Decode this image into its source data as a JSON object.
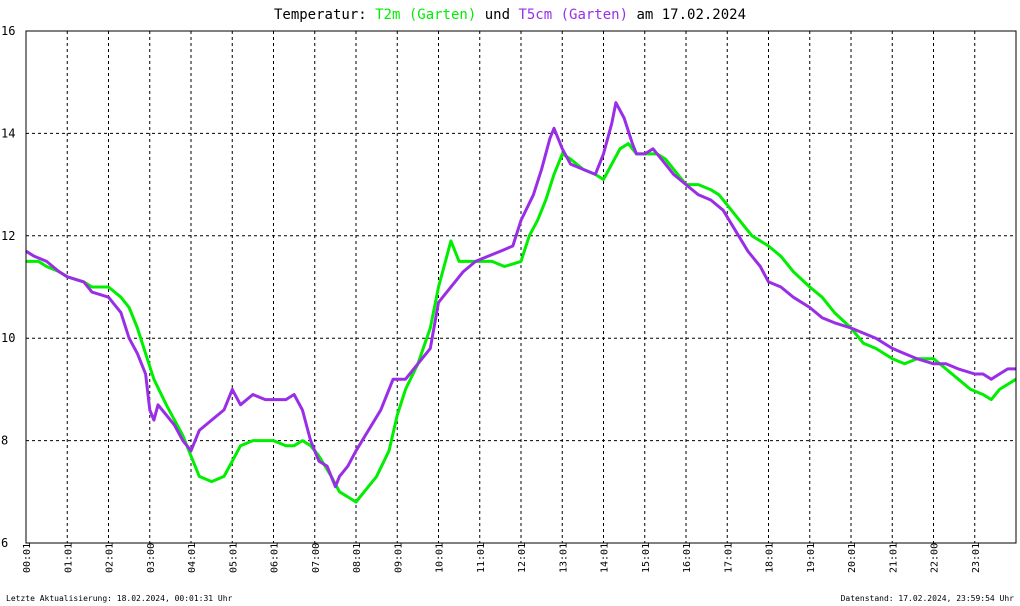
{
  "chart_data": {
    "type": "line",
    "title_parts": [
      {
        "text": "Temperatur: ",
        "color": "#000000"
      },
      {
        "text": "T2m (Garten)",
        "color": "#00ee00"
      },
      {
        "text": " und ",
        "color": "#000000"
      },
      {
        "text": "T5cm (Garten)",
        "color": "#9a2ee6"
      },
      {
        "text": " am 17.02.2024",
        "color": "#000000"
      }
    ],
    "ylim": [
      6,
      16
    ],
    "yticks": [
      6,
      8,
      10,
      12,
      14,
      16
    ],
    "x_range_hours": [
      0,
      24
    ],
    "xticks": [
      "00:01",
      "01:01",
      "02:01",
      "03:00",
      "04:01",
      "05:01",
      "06:01",
      "07:00",
      "08:01",
      "09:01",
      "10:01",
      "11:01",
      "12:01",
      "13:01",
      "14:01",
      "15:01",
      "16:01",
      "17:01",
      "18:01",
      "19:01",
      "20:01",
      "21:01",
      "22:00",
      "23:01"
    ],
    "grid": true,
    "series": [
      {
        "name": "T2m (Garten)",
        "color": "#00ee00",
        "points": [
          [
            0,
            11.5
          ],
          [
            0.3,
            11.5
          ],
          [
            0.5,
            11.4
          ],
          [
            0.8,
            11.3
          ],
          [
            1.0,
            11.2
          ],
          [
            1.4,
            11.1
          ],
          [
            1.6,
            11.0
          ],
          [
            2.0,
            11.0
          ],
          [
            2.3,
            10.8
          ],
          [
            2.5,
            10.6
          ],
          [
            2.7,
            10.2
          ],
          [
            2.9,
            9.7
          ],
          [
            3.1,
            9.2
          ],
          [
            3.4,
            8.7
          ],
          [
            3.6,
            8.4
          ],
          [
            3.8,
            8.1
          ],
          [
            4.0,
            7.7
          ],
          [
            4.2,
            7.3
          ],
          [
            4.5,
            7.2
          ],
          [
            4.8,
            7.3
          ],
          [
            5.0,
            7.6
          ],
          [
            5.2,
            7.9
          ],
          [
            5.5,
            8.0
          ],
          [
            5.8,
            8.0
          ],
          [
            6.0,
            8.0
          ],
          [
            6.3,
            7.9
          ],
          [
            6.5,
            7.9
          ],
          [
            6.7,
            8.0
          ],
          [
            6.9,
            7.9
          ],
          [
            7.1,
            7.7
          ],
          [
            7.4,
            7.3
          ],
          [
            7.6,
            7.0
          ],
          [
            7.8,
            6.9
          ],
          [
            8.0,
            6.8
          ],
          [
            8.2,
            7.0
          ],
          [
            8.5,
            7.3
          ],
          [
            8.8,
            7.8
          ],
          [
            9.0,
            8.5
          ],
          [
            9.2,
            9.0
          ],
          [
            9.5,
            9.5
          ],
          [
            9.8,
            10.2
          ],
          [
            10.0,
            11.0
          ],
          [
            10.2,
            11.6
          ],
          [
            10.3,
            11.9
          ],
          [
            10.5,
            11.5
          ],
          [
            10.8,
            11.5
          ],
          [
            11.0,
            11.5
          ],
          [
            11.3,
            11.5
          ],
          [
            11.6,
            11.4
          ],
          [
            12.0,
            11.5
          ],
          [
            12.2,
            12.0
          ],
          [
            12.4,
            12.3
          ],
          [
            12.6,
            12.7
          ],
          [
            12.8,
            13.2
          ],
          [
            13.0,
            13.6
          ],
          [
            13.2,
            13.5
          ],
          [
            13.5,
            13.3
          ],
          [
            13.8,
            13.2
          ],
          [
            14.0,
            13.1
          ],
          [
            14.2,
            13.4
          ],
          [
            14.4,
            13.7
          ],
          [
            14.6,
            13.8
          ],
          [
            14.8,
            13.6
          ],
          [
            15.0,
            13.6
          ],
          [
            15.3,
            13.6
          ],
          [
            15.5,
            13.5
          ],
          [
            15.8,
            13.2
          ],
          [
            16.0,
            13.0
          ],
          [
            16.3,
            13.0
          ],
          [
            16.6,
            12.9
          ],
          [
            16.8,
            12.8
          ],
          [
            17.0,
            12.6
          ],
          [
            17.3,
            12.3
          ],
          [
            17.6,
            12.0
          ],
          [
            18.0,
            11.8
          ],
          [
            18.3,
            11.6
          ],
          [
            18.6,
            11.3
          ],
          [
            19.0,
            11.0
          ],
          [
            19.3,
            10.8
          ],
          [
            19.6,
            10.5
          ],
          [
            20.0,
            10.2
          ],
          [
            20.3,
            9.9
          ],
          [
            20.6,
            9.8
          ],
          [
            21.0,
            9.6
          ],
          [
            21.3,
            9.5
          ],
          [
            21.6,
            9.6
          ],
          [
            22.0,
            9.6
          ],
          [
            22.3,
            9.4
          ],
          [
            22.6,
            9.2
          ],
          [
            22.9,
            9.0
          ],
          [
            23.2,
            8.9
          ],
          [
            23.4,
            8.8
          ],
          [
            23.6,
            9.0
          ],
          [
            23.8,
            9.1
          ],
          [
            24.0,
            9.2
          ]
        ]
      },
      {
        "name": "T5cm (Garten)",
        "color": "#9a2ee6",
        "points": [
          [
            0,
            11.7
          ],
          [
            0.2,
            11.6
          ],
          [
            0.5,
            11.5
          ],
          [
            0.8,
            11.3
          ],
          [
            1.0,
            11.2
          ],
          [
            1.4,
            11.1
          ],
          [
            1.6,
            10.9
          ],
          [
            2.0,
            10.8
          ],
          [
            2.3,
            10.5
          ],
          [
            2.5,
            10.0
          ],
          [
            2.7,
            9.7
          ],
          [
            2.9,
            9.3
          ],
          [
            3.0,
            8.6
          ],
          [
            3.1,
            8.4
          ],
          [
            3.2,
            8.7
          ],
          [
            3.4,
            8.5
          ],
          [
            3.6,
            8.3
          ],
          [
            3.8,
            8.0
          ],
          [
            4.0,
            7.8
          ],
          [
            4.2,
            8.2
          ],
          [
            4.5,
            8.4
          ],
          [
            4.8,
            8.6
          ],
          [
            5.0,
            9.0
          ],
          [
            5.2,
            8.7
          ],
          [
            5.5,
            8.9
          ],
          [
            5.8,
            8.8
          ],
          [
            6.0,
            8.8
          ],
          [
            6.3,
            8.8
          ],
          [
            6.5,
            8.9
          ],
          [
            6.7,
            8.6
          ],
          [
            6.9,
            8.0
          ],
          [
            7.1,
            7.6
          ],
          [
            7.3,
            7.5
          ],
          [
            7.5,
            7.1
          ],
          [
            7.6,
            7.3
          ],
          [
            7.8,
            7.5
          ],
          [
            8.0,
            7.8
          ],
          [
            8.3,
            8.2
          ],
          [
            8.6,
            8.6
          ],
          [
            8.9,
            9.2
          ],
          [
            9.2,
            9.2
          ],
          [
            9.5,
            9.5
          ],
          [
            9.8,
            9.8
          ],
          [
            10.0,
            10.7
          ],
          [
            10.2,
            10.9
          ],
          [
            10.4,
            11.1
          ],
          [
            10.6,
            11.3
          ],
          [
            10.9,
            11.5
          ],
          [
            11.2,
            11.6
          ],
          [
            11.5,
            11.7
          ],
          [
            11.8,
            11.8
          ],
          [
            12.0,
            12.3
          ],
          [
            12.3,
            12.8
          ],
          [
            12.5,
            13.3
          ],
          [
            12.7,
            13.9
          ],
          [
            12.8,
            14.1
          ],
          [
            13.0,
            13.7
          ],
          [
            13.2,
            13.4
          ],
          [
            13.5,
            13.3
          ],
          [
            13.8,
            13.2
          ],
          [
            14.0,
            13.6
          ],
          [
            14.2,
            14.2
          ],
          [
            14.3,
            14.6
          ],
          [
            14.5,
            14.3
          ],
          [
            14.7,
            13.8
          ],
          [
            14.8,
            13.6
          ],
          [
            15.0,
            13.6
          ],
          [
            15.2,
            13.7
          ],
          [
            15.5,
            13.4
          ],
          [
            15.7,
            13.2
          ],
          [
            16.0,
            13.0
          ],
          [
            16.3,
            12.8
          ],
          [
            16.6,
            12.7
          ],
          [
            16.9,
            12.5
          ],
          [
            17.2,
            12.1
          ],
          [
            17.5,
            11.7
          ],
          [
            17.8,
            11.4
          ],
          [
            18.0,
            11.1
          ],
          [
            18.3,
            11.0
          ],
          [
            18.6,
            10.8
          ],
          [
            19.0,
            10.6
          ],
          [
            19.3,
            10.4
          ],
          [
            19.6,
            10.3
          ],
          [
            20.0,
            10.2
          ],
          [
            20.3,
            10.1
          ],
          [
            20.6,
            10.0
          ],
          [
            21.0,
            9.8
          ],
          [
            21.3,
            9.7
          ],
          [
            21.6,
            9.6
          ],
          [
            22.0,
            9.5
          ],
          [
            22.3,
            9.5
          ],
          [
            22.6,
            9.4
          ],
          [
            23.0,
            9.3
          ],
          [
            23.2,
            9.3
          ],
          [
            23.4,
            9.2
          ],
          [
            23.6,
            9.3
          ],
          [
            23.8,
            9.4
          ],
          [
            24.0,
            9.4
          ]
        ]
      }
    ],
    "footer_left": "Letzte Aktualisierung: 18.02.2024, 00:01:31 Uhr",
    "footer_right": "Datenstand: 17.02.2024, 23:59:54 Uhr"
  }
}
